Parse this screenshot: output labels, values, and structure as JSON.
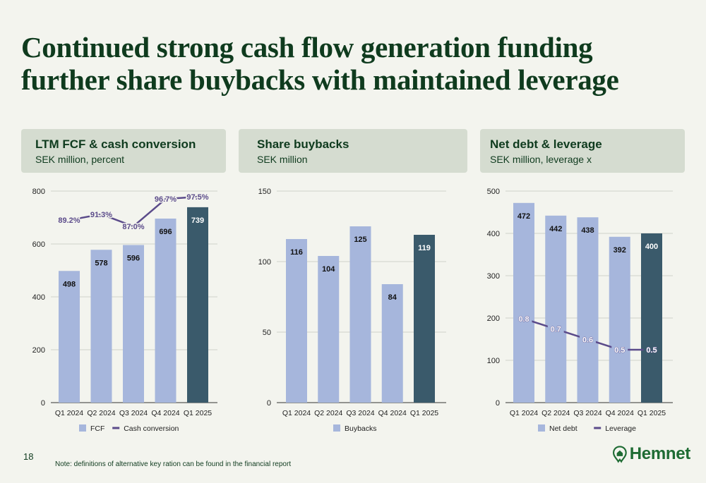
{
  "title": {
    "line1": "Continued strong cash flow generation funding",
    "line2": "further share buybacks with maintained leverage"
  },
  "page_number": "18",
  "note": "Note: definitions of alternative key ration can be found in the financial report",
  "logo": {
    "text": "Hemnet",
    "icon": "house-pin-icon"
  },
  "colors": {
    "bar": "#a6b6dc",
    "bar_highlight": "#3a5a6b",
    "line": "#5b4b8a",
    "header_bg": "#d5dcd0",
    "title": "#0f3b1e",
    "brand": "#1e6b33"
  },
  "panels": [
    {
      "title": "LTM FCF & cash conversion",
      "subtitle": "SEK million, percent"
    },
    {
      "title": "Share buybacks",
      "subtitle": "SEK million"
    },
    {
      "title": "Net debt & leverage",
      "subtitle": "SEK million, leverage x"
    }
  ],
  "chart_data": [
    {
      "type": "bar",
      "categories": [
        "Q1 2024",
        "Q2 2024",
        "Q3 2024",
        "Q4 2024",
        "Q1 2025"
      ],
      "series": [
        {
          "name": "FCF",
          "type": "bar",
          "values": [
            498,
            578,
            596,
            696,
            739
          ],
          "labels": [
            "498",
            "578",
            "596",
            "696",
            "739"
          ]
        },
        {
          "name": "Cash conversion",
          "type": "line",
          "values": [
            89.2,
            91.3,
            87.0,
            96.7,
            97.5
          ],
          "labels": [
            "89.2%",
            "91.3%",
            "87.0%",
            "96.7%",
            "97.5%"
          ]
        }
      ],
      "highlight_index": 4,
      "yticks": [
        0,
        200,
        400,
        600,
        800
      ],
      "ylim": [
        0,
        800
      ],
      "legend": "bottom",
      "grid": true
    },
    {
      "type": "bar",
      "categories": [
        "Q1 2024",
        "Q2 2024",
        "Q3 2024",
        "Q4 2024",
        "Q1 2025"
      ],
      "series": [
        {
          "name": "Buybacks",
          "type": "bar",
          "values": [
            116,
            104,
            125,
            84,
            119
          ],
          "labels": [
            "116",
            "104",
            "125",
            "84",
            "119"
          ]
        }
      ],
      "highlight_index": 4,
      "yticks": [
        0,
        50,
        100,
        150
      ],
      "ylim": [
        0,
        150
      ],
      "legend": "bottom",
      "grid": true
    },
    {
      "type": "bar",
      "categories": [
        "Q1 2024",
        "Q2 2024",
        "Q3 2024",
        "Q4 2024",
        "Q1 2025"
      ],
      "series": [
        {
          "name": "Net debt",
          "type": "bar",
          "values": [
            472,
            442,
            438,
            392,
            400
          ],
          "labels": [
            "472",
            "442",
            "438",
            "392",
            "400"
          ]
        },
        {
          "name": "Leverage",
          "type": "line",
          "values": [
            0.8,
            0.7,
            0.6,
            0.5,
            0.5
          ],
          "labels": [
            "0.8",
            "0.7",
            "0.6",
            "0.5",
            "0.5"
          ]
        }
      ],
      "highlight_index": 4,
      "yticks": [
        0,
        100,
        200,
        300,
        400,
        500
      ],
      "ylim": [
        0,
        500
      ],
      "legend": "bottom",
      "grid": true
    }
  ]
}
